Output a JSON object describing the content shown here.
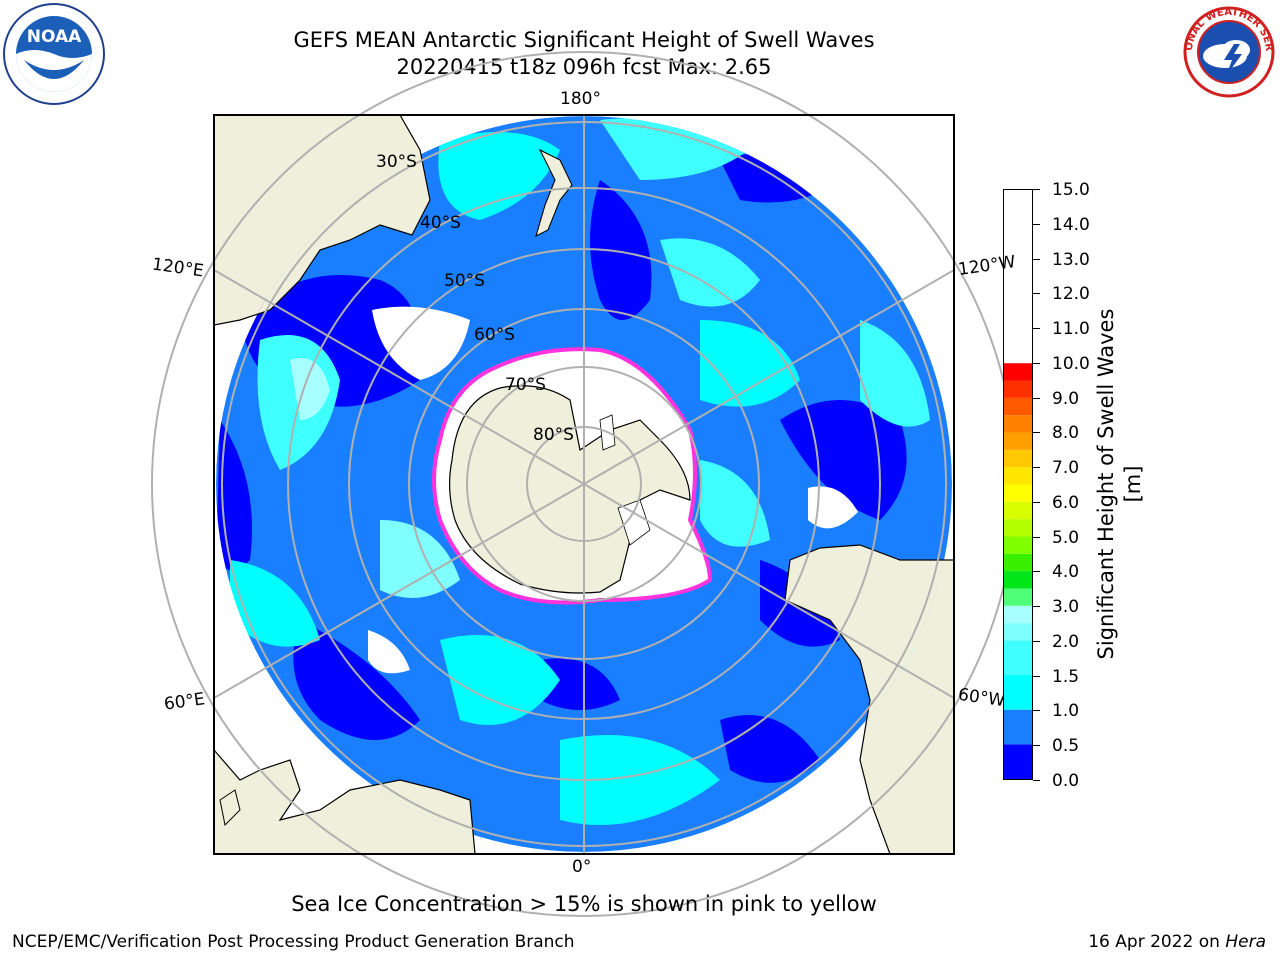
{
  "header": {
    "title_line1": "GEFS MEAN Antarctic Significant Height of Swell Waves",
    "title_line2": "20220415 t18z 096h fcst   Max: 2.65"
  },
  "logos": {
    "left": "NOAA",
    "right": "NATIONAL WEATHER SERVICE"
  },
  "map": {
    "projection": "south polar stereographic",
    "longitude_labels": {
      "top": "180°",
      "bottom": "0°",
      "upper_left": "120°E",
      "upper_right": "120°W",
      "lower_left": "60°E",
      "lower_right": "60°W"
    },
    "latitude_labels": [
      "30°S",
      "40°S",
      "50°S",
      "60°S",
      "70°S",
      "80°S"
    ],
    "colors": {
      "land": "#efefdc",
      "grid": "#b0b0b0"
    }
  },
  "colorbar": {
    "label": "Significant Height of Swell Waves [m]",
    "ticks": [
      "15.0",
      "14.0",
      "13.0",
      "12.0",
      "11.0",
      "10.0",
      "9.0",
      "8.0",
      "7.0",
      "6.0",
      "5.0",
      "4.0",
      "3.0",
      "2.0",
      "1.5",
      "1.0",
      "0.5",
      "0.0"
    ],
    "levels": [
      0.0,
      0.5,
      1.0,
      1.5,
      2.0,
      2.5,
      3.0,
      3.5,
      4.0,
      4.5,
      5.0,
      5.5,
      6.0,
      6.5,
      7.0,
      7.5,
      8.0,
      8.5,
      9.0,
      9.5,
      10.0,
      10.5,
      11.0,
      11.5,
      12.0,
      12.5,
      13.0,
      13.5,
      14.0,
      14.5,
      15.0
    ],
    "colors": [
      "#0000ff",
      "#1a7fff",
      "#00ffff",
      "#40ffff",
      "#80ffff",
      "#a8ffff",
      "#50ff78",
      "#00e619",
      "#38f000",
      "#80ff00",
      "#b3ff00",
      "#d8ff00",
      "#ffff00",
      "#ffe600",
      "#ffc800",
      "#ffa000",
      "#ff8000",
      "#ff5a00",
      "#ff3000",
      "#ff0000"
    ]
  },
  "footer": {
    "note": "Sea Ice Concentration > 15% is shown in pink to yellow",
    "credit": "NCEP/EMC/Verification Post Processing Product Generation Branch",
    "date": "16 Apr 2022 on ",
    "system": "Hera"
  }
}
